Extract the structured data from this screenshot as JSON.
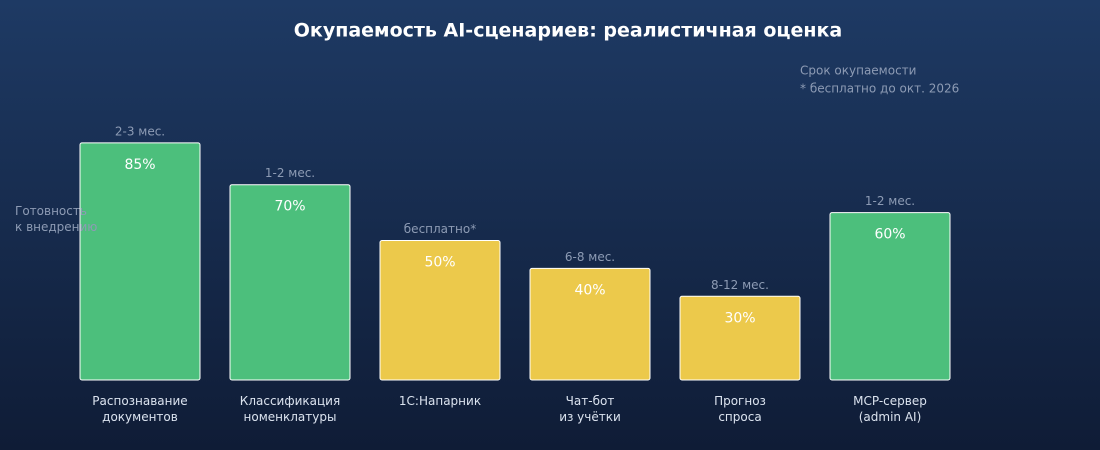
{
  "chart_data": {
    "type": "bar",
    "title": "Окупаемость AI-сценариев: реалистичная оценка",
    "y_label": "Готовность\nк внедрению",
    "legend_title": "Срок окупаемости",
    "note": "* бесплатно до окт. 2026",
    "categories": [
      "Распознавание\nдокументов",
      "Классификация\nноменклатуры",
      "1С:Напарник",
      "Чат-бот\nиз учётки",
      "Прогноз\nспроса",
      "MCP-сервер\n(admin AI)"
    ],
    "values": [
      85,
      70,
      50,
      40,
      30,
      60
    ],
    "value_labels": [
      "85%",
      "70%",
      "50%",
      "40%",
      "30%",
      "60%"
    ],
    "payback": [
      "2-3 мес.",
      "1-2 мес.",
      "бесплатно*",
      "6-8 мес.",
      "8-12 мес.",
      "1-2 мес."
    ],
    "colors": [
      "#4cbf7c",
      "#4cbf7c",
      "#ecc94b",
      "#ecc94b",
      "#ecc94b",
      "#4cbf7c"
    ],
    "ylim": [
      0,
      100
    ]
  }
}
